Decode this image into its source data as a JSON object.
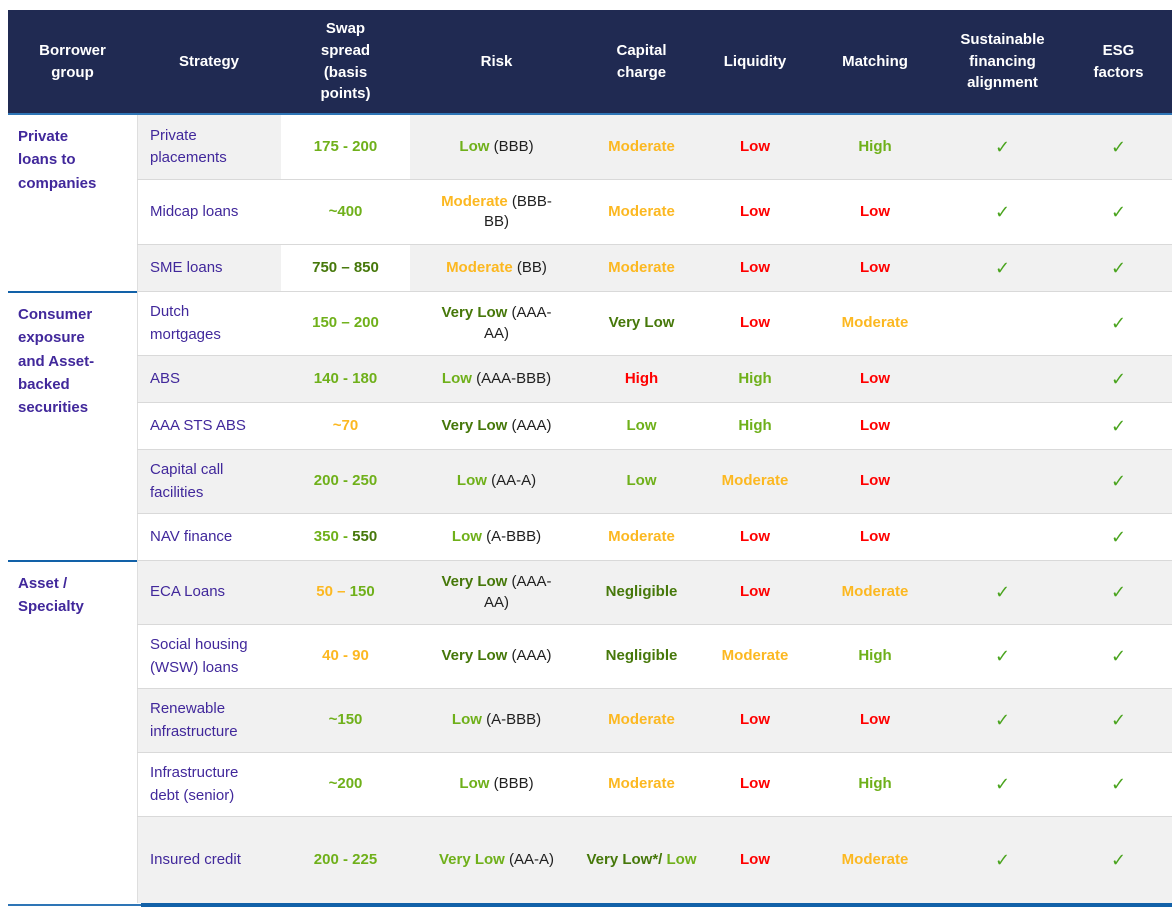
{
  "colors": {
    "header_navy": "#202a52",
    "header_underline_blue": "#2e75b6",
    "group_separator_blue": "#1261a8",
    "strategy_purple": "#41289b",
    "green": "#6fb01a",
    "dark_green": "#46780a",
    "amber": "#fcb821",
    "red": "#ff0000",
    "check_green": "#4aa41e",
    "row_gray": "#f1f1f1",
    "separator_gray": "#d9d9d9",
    "text_black": "#1f1f1f"
  },
  "icons": {
    "check": "✓"
  },
  "table": {
    "columns": [
      {
        "label": "Borrower group"
      },
      {
        "label": "Strategy"
      },
      {
        "label": "Swap spread (basis points)"
      },
      {
        "label": "Risk"
      },
      {
        "label": "Capital charge"
      },
      {
        "label": "Liquidity"
      },
      {
        "label": "Matching"
      },
      {
        "label": "Sustainable financing alignment"
      },
      {
        "label": "ESG factors"
      }
    ],
    "groups": [
      {
        "label": "Private loans to companies",
        "rows": [
          {
            "strategy": "Private placements",
            "swap": [
              {
                "text": "175 - 200",
                "color": "green"
              }
            ],
            "swap_cell_white": true,
            "risk": [
              {
                "text": "Low",
                "color": "green"
              },
              {
                "text": " (BBB)",
                "color": "black"
              }
            ],
            "capital": [
              {
                "text": "Moderate",
                "color": "amber"
              }
            ],
            "liquidity": [
              {
                "text": "Low",
                "color": "red"
              }
            ],
            "matching": [
              {
                "text": "High",
                "color": "green"
              }
            ],
            "sustainable": true,
            "esg": true
          },
          {
            "strategy": "Midcap loans",
            "swap": [
              {
                "text": "~400",
                "color": "green"
              }
            ],
            "swap_cell_white": false,
            "risk": [
              {
                "text": "Moderate",
                "color": "amber"
              },
              {
                "text": " (BBB-BB)",
                "color": "black"
              }
            ],
            "capital": [
              {
                "text": "Moderate",
                "color": "amber"
              }
            ],
            "liquidity": [
              {
                "text": "Low",
                "color": "red"
              }
            ],
            "matching": [
              {
                "text": "Low",
                "color": "red"
              }
            ],
            "sustainable": true,
            "esg": true
          },
          {
            "strategy": "SME loans",
            "swap": [
              {
                "text": "750 – 850",
                "color": "darkgreen"
              }
            ],
            "swap_cell_white": true,
            "risk": [
              {
                "text": "Moderate",
                "color": "amber"
              },
              {
                "text": " (BB)",
                "color": "black"
              }
            ],
            "capital": [
              {
                "text": "Moderate",
                "color": "amber"
              }
            ],
            "liquidity": [
              {
                "text": "Low",
                "color": "red"
              }
            ],
            "matching": [
              {
                "text": "Low",
                "color": "red"
              }
            ],
            "sustainable": true,
            "esg": true
          }
        ]
      },
      {
        "label": "Consumer exposure and Asset-backed securities",
        "rows": [
          {
            "strategy": "Dutch mortgages",
            "swap": [
              {
                "text": "150 – 200",
                "color": "green"
              }
            ],
            "swap_cell_white": false,
            "risk": [
              {
                "text": "Very Low",
                "color": "darkgreen"
              },
              {
                "text": " (AAA-AA)",
                "color": "black"
              }
            ],
            "capital": [
              {
                "text": "Very Low",
                "color": "darkgreen"
              }
            ],
            "liquidity": [
              {
                "text": "Low",
                "color": "red"
              }
            ],
            "matching": [
              {
                "text": "Moderate",
                "color": "amber"
              }
            ],
            "sustainable": false,
            "esg": true
          },
          {
            "strategy": "ABS",
            "swap": [
              {
                "text": "140 - 180",
                "color": "green"
              }
            ],
            "swap_cell_white": false,
            "risk": [
              {
                "text": "Low",
                "color": "green"
              },
              {
                "text": " (AAA-BBB)",
                "color": "black"
              }
            ],
            "capital": [
              {
                "text": "High",
                "color": "red"
              }
            ],
            "liquidity": [
              {
                "text": "High",
                "color": "green"
              }
            ],
            "matching": [
              {
                "text": "Low",
                "color": "red"
              }
            ],
            "sustainable": false,
            "esg": true
          },
          {
            "strategy": "AAA STS ABS",
            "swap": [
              {
                "text": "~70",
                "color": "amber"
              }
            ],
            "swap_cell_white": false,
            "risk": [
              {
                "text": "Very Low",
                "color": "darkgreen"
              },
              {
                "text": " (AAA)",
                "color": "black"
              }
            ],
            "capital": [
              {
                "text": "Low",
                "color": "green"
              }
            ],
            "liquidity": [
              {
                "text": "High",
                "color": "green"
              }
            ],
            "matching": [
              {
                "text": "Low",
                "color": "red"
              }
            ],
            "sustainable": false,
            "esg": true
          },
          {
            "strategy": "Capital call facilities",
            "swap": [
              {
                "text": "200 - 250",
                "color": "green"
              }
            ],
            "swap_cell_white": false,
            "risk": [
              {
                "text": "Low",
                "color": "green"
              },
              {
                "text": " (AA-A)",
                "color": "black"
              }
            ],
            "capital": [
              {
                "text": "Low",
                "color": "green"
              }
            ],
            "liquidity": [
              {
                "text": "Moderate",
                "color": "amber"
              }
            ],
            "matching": [
              {
                "text": "Low",
                "color": "red"
              }
            ],
            "sustainable": false,
            "esg": true
          },
          {
            "strategy": "NAV finance",
            "swap": [
              {
                "text": "350 - ",
                "color": "green"
              },
              {
                "text": "550",
                "color": "darkgreen"
              }
            ],
            "swap_cell_white": false,
            "risk": [
              {
                "text": "Low",
                "color": "green"
              },
              {
                "text": " (A-BBB)",
                "color": "black"
              }
            ],
            "capital": [
              {
                "text": "Moderate",
                "color": "amber"
              }
            ],
            "liquidity": [
              {
                "text": "Low",
                "color": "red"
              }
            ],
            "matching": [
              {
                "text": "Low",
                "color": "red"
              }
            ],
            "sustainable": false,
            "esg": true
          }
        ]
      },
      {
        "label": "Asset / Specialty",
        "rows": [
          {
            "strategy": "ECA Loans",
            "swap": [
              {
                "text": "50 – ",
                "color": "amber"
              },
              {
                "text": "150",
                "color": "green"
              }
            ],
            "swap_cell_white": false,
            "risk": [
              {
                "text": "Very Low",
                "color": "darkgreen"
              },
              {
                "text": " (AAA-AA)",
                "color": "black"
              }
            ],
            "capital": [
              {
                "text": "Negligible",
                "color": "darkgreen"
              }
            ],
            "liquidity": [
              {
                "text": "Low",
                "color": "red"
              }
            ],
            "matching": [
              {
                "text": "Moderate",
                "color": "amber"
              }
            ],
            "sustainable": true,
            "esg": true
          },
          {
            "strategy": "Social housing (WSW) loans",
            "swap": [
              {
                "text": "40 - 90",
                "color": "amber"
              }
            ],
            "swap_cell_white": false,
            "risk": [
              {
                "text": "Very Low",
                "color": "darkgreen"
              },
              {
                "text": " (AAA)",
                "color": "black"
              }
            ],
            "capital": [
              {
                "text": "Negligible",
                "color": "darkgreen"
              }
            ],
            "liquidity": [
              {
                "text": "Moderate",
                "color": "amber"
              }
            ],
            "matching": [
              {
                "text": "High",
                "color": "green"
              }
            ],
            "sustainable": true,
            "esg": true
          },
          {
            "strategy": "Renewable infrastructure",
            "swap": [
              {
                "text": "~150",
                "color": "green"
              }
            ],
            "swap_cell_white": false,
            "risk": [
              {
                "text": "Low",
                "color": "green"
              },
              {
                "text": " (A-BBB)",
                "color": "black"
              }
            ],
            "capital": [
              {
                "text": "Moderate",
                "color": "amber"
              }
            ],
            "liquidity": [
              {
                "text": "Low",
                "color": "red"
              }
            ],
            "matching": [
              {
                "text": "Low",
                "color": "red"
              }
            ],
            "sustainable": true,
            "esg": true
          },
          {
            "strategy": "Infrastructure debt (senior)",
            "swap": [
              {
                "text": "~200",
                "color": "green"
              }
            ],
            "swap_cell_white": false,
            "risk": [
              {
                "text": "Low",
                "color": "green"
              },
              {
                "text": " (BBB)",
                "color": "black"
              }
            ],
            "capital": [
              {
                "text": "Moderate",
                "color": "amber"
              }
            ],
            "liquidity": [
              {
                "text": "Low",
                "color": "red"
              }
            ],
            "matching": [
              {
                "text": "High",
                "color": "green"
              }
            ],
            "sustainable": true,
            "esg": true
          },
          {
            "strategy": "Insured credit",
            "swap": [
              {
                "text": "200 - 225",
                "color": "green"
              }
            ],
            "swap_cell_white": false,
            "risk": [
              {
                "text": "Very Low",
                "color": "green"
              },
              {
                "text": " (AA-A)",
                "color": "black"
              }
            ],
            "capital": [
              {
                "text": "Very Low*/ ",
                "color": "darkgreen"
              },
              {
                "text": "Low",
                "color": "green"
              }
            ],
            "liquidity": [
              {
                "text": "Low",
                "color": "red"
              }
            ],
            "matching": [
              {
                "text": "Moderate",
                "color": "amber"
              }
            ],
            "sustainable": true,
            "esg": true
          }
        ]
      }
    ]
  }
}
